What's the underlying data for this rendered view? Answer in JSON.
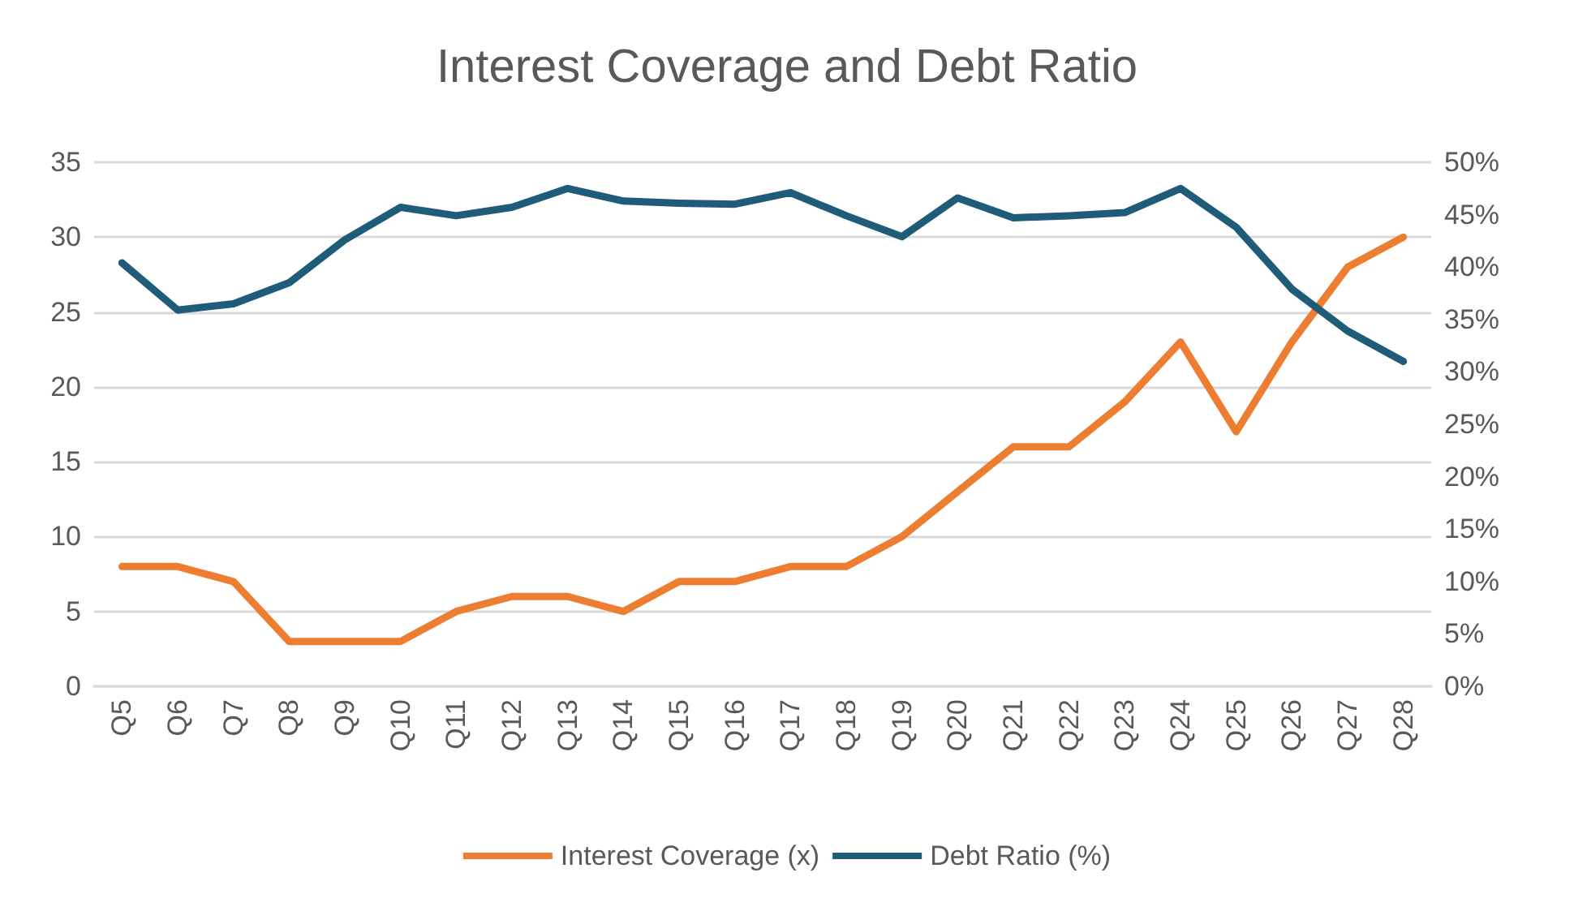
{
  "chart_data": {
    "type": "line",
    "title": "Interest Coverage and Debt Ratio",
    "categories": [
      "Q5",
      "Q6",
      "Q7",
      "Q8",
      "Q9",
      "Q10",
      "Q11",
      "Q12",
      "Q13",
      "Q14",
      "Q15",
      "Q16",
      "Q17",
      "Q18",
      "Q19",
      "Q20",
      "Q21",
      "Q22",
      "Q23",
      "Q24",
      "Q25",
      "Q26",
      "Q27",
      "Q28"
    ],
    "series": [
      {
        "name": "Interest Coverage (x)",
        "color": "#ed7d31",
        "values": [
          8,
          8,
          7,
          3,
          3,
          3,
          5,
          6,
          6,
          5,
          7,
          7,
          8,
          8,
          10,
          13,
          16,
          16,
          19,
          23,
          17,
          23,
          28,
          30
        ]
      },
      {
        "name": "Debt Ratio (%)",
        "color": "#1f5c7a",
        "axis": "y2",
        "values": [
          40.4,
          35.9,
          36.5,
          38.5,
          42.6,
          45.7,
          44.9,
          45.7,
          47.5,
          46.3,
          46.1,
          46.0,
          47.1,
          44.9,
          42.9,
          46.6,
          44.7,
          44.9,
          45.2,
          47.5,
          43.8,
          37.9,
          33.9,
          31.0
        ]
      }
    ],
    "ylim": [
      0,
      35
    ],
    "yticks": [
      0,
      5,
      10,
      15,
      20,
      25,
      30,
      35
    ],
    "y2lim": [
      0,
      50
    ],
    "y2ticks": [
      {
        "value": 0,
        "label": "0%"
      },
      {
        "value": 5,
        "label": "5%"
      },
      {
        "value": 10,
        "label": "10%"
      },
      {
        "value": 15,
        "label": "15%"
      },
      {
        "value": 20,
        "label": "20%"
      },
      {
        "value": 25,
        "label": "25%"
      },
      {
        "value": 30,
        "label": "30%"
      },
      {
        "value": 35,
        "label": "35%"
      },
      {
        "value": 40,
        "label": "40%"
      },
      {
        "value": 45,
        "label": "45%"
      },
      {
        "value": 50,
        "label": "50%"
      }
    ],
    "grid": "y",
    "legend": "bottom",
    "marker": "none",
    "line_style": "solid"
  }
}
